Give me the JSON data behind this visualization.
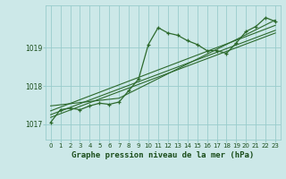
{
  "bg_color": "#cce8e8",
  "grid_color": "#99cccc",
  "line_color": "#2d6a2d",
  "text_color": "#1a4d1a",
  "xlabel": "Graphe pression niveau de la mer (hPa)",
  "ylim": [
    1016.6,
    1020.1
  ],
  "xlim": [
    -0.5,
    23.5
  ],
  "yticks": [
    1017,
    1018,
    1019
  ],
  "xticks": [
    0,
    1,
    2,
    3,
    4,
    5,
    6,
    7,
    8,
    9,
    10,
    11,
    12,
    13,
    14,
    15,
    16,
    17,
    18,
    19,
    20,
    21,
    22,
    23
  ],
  "main_x": [
    0,
    1,
    2,
    3,
    4,
    5,
    6,
    7,
    8,
    9,
    10,
    11,
    12,
    13,
    14,
    15,
    16,
    17,
    18,
    19,
    20,
    21,
    22,
    23
  ],
  "main_y": [
    1017.05,
    1017.38,
    1017.42,
    1017.38,
    1017.48,
    1017.55,
    1017.52,
    1017.58,
    1017.88,
    1018.18,
    1019.08,
    1019.52,
    1019.38,
    1019.32,
    1019.18,
    1019.08,
    1018.92,
    1018.92,
    1018.85,
    1019.12,
    1019.42,
    1019.55,
    1019.78,
    1019.68
  ],
  "trend1_x": [
    0,
    23
  ],
  "trend1_y": [
    1017.25,
    1019.45
  ],
  "trend2_x": [
    0,
    23
  ],
  "trend2_y": [
    1017.18,
    1019.38
  ],
  "trend3_x": [
    0,
    23
  ],
  "trend3_y": [
    1017.35,
    1019.58
  ],
  "trend4_x": [
    0,
    7,
    23
  ],
  "trend4_y": [
    1017.48,
    1017.68,
    1019.72
  ]
}
